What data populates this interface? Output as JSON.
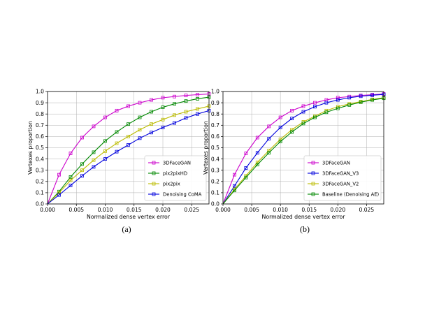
{
  "chart_data": [
    {
      "type": "line",
      "caption": "(a)",
      "xlabel": "Normalized dense vertex error",
      "ylabel": "Vertexes proportion",
      "xlim": [
        0,
        0.028
      ],
      "ylim": [
        0,
        1.0
      ],
      "xticks": [
        "0.000",
        "0.005",
        "0.010",
        "0.015",
        "0.020",
        "0.025"
      ],
      "yticks": [
        "0.0",
        "0.1",
        "0.2",
        "0.3",
        "0.4",
        "0.5",
        "0.6",
        "0.7",
        "0.8",
        "0.9",
        "1.0"
      ],
      "grid": true,
      "legend_position": "lower-right",
      "x": [
        0,
        0.002,
        0.004,
        0.006,
        0.008,
        0.01,
        0.012,
        0.014,
        0.016,
        0.018,
        0.02,
        0.022,
        0.024,
        0.026,
        0.028
      ],
      "series": [
        {
          "name": "3DFaceGAN",
          "color": "#cc00cc",
          "values": [
            0,
            0.26,
            0.45,
            0.59,
            0.69,
            0.77,
            0.83,
            0.87,
            0.9,
            0.925,
            0.945,
            0.955,
            0.965,
            0.972,
            0.978
          ]
        },
        {
          "name": "pix2pixHD",
          "color": "#008800",
          "values": [
            0,
            0.11,
            0.24,
            0.355,
            0.46,
            0.56,
            0.64,
            0.71,
            0.77,
            0.82,
            0.86,
            0.89,
            0.915,
            0.935,
            0.95
          ]
        },
        {
          "name": "pix2pix",
          "color": "#bbbb00",
          "values": [
            0,
            0.1,
            0.21,
            0.3,
            0.39,
            0.47,
            0.54,
            0.6,
            0.66,
            0.71,
            0.75,
            0.79,
            0.82,
            0.845,
            0.87
          ]
        },
        {
          "name": "Denoising CoMA",
          "color": "#0000dd",
          "values": [
            0,
            0.08,
            0.165,
            0.25,
            0.33,
            0.4,
            0.465,
            0.525,
            0.585,
            0.635,
            0.68,
            0.72,
            0.765,
            0.8,
            0.83
          ]
        }
      ]
    },
    {
      "type": "line",
      "caption": "(b)",
      "xlabel": "Normalized dense vertex error",
      "ylabel": "Vertexes proportion",
      "xlim": [
        0,
        0.028
      ],
      "ylim": [
        0,
        1.0
      ],
      "xticks": [
        "0.000",
        "0.005",
        "0.010",
        "0.015",
        "0.020",
        "0.025"
      ],
      "yticks": [
        "0.0",
        "0.1",
        "0.2",
        "0.3",
        "0.4",
        "0.5",
        "0.6",
        "0.7",
        "0.8",
        "0.9",
        "1.0"
      ],
      "grid": true,
      "legend_position": "lower-right",
      "x": [
        0,
        0.002,
        0.004,
        0.006,
        0.008,
        0.01,
        0.012,
        0.014,
        0.016,
        0.018,
        0.02,
        0.022,
        0.024,
        0.026,
        0.028
      ],
      "series": [
        {
          "name": "3DFaceGAN",
          "color": "#cc00cc",
          "values": [
            0,
            0.26,
            0.45,
            0.59,
            0.69,
            0.77,
            0.83,
            0.87,
            0.9,
            0.925,
            0.945,
            0.955,
            0.965,
            0.972,
            0.978
          ]
        },
        {
          "name": "3DFaceGAN_V3",
          "color": "#0000dd",
          "values": [
            0,
            0.16,
            0.32,
            0.455,
            0.58,
            0.68,
            0.76,
            0.82,
            0.865,
            0.9,
            0.925,
            0.945,
            0.958,
            0.967,
            0.974
          ]
        },
        {
          "name": "3DFaceGAN_V2",
          "color": "#bbbb00",
          "values": [
            0,
            0.13,
            0.25,
            0.37,
            0.475,
            0.575,
            0.66,
            0.73,
            0.78,
            0.83,
            0.865,
            0.89,
            0.91,
            0.93,
            0.945
          ]
        },
        {
          "name": "Baseline (Denoising AE)",
          "color": "#008800",
          "values": [
            0,
            0.12,
            0.235,
            0.35,
            0.455,
            0.555,
            0.64,
            0.715,
            0.77,
            0.815,
            0.85,
            0.88,
            0.905,
            0.925,
            0.94
          ]
        }
      ]
    }
  ]
}
